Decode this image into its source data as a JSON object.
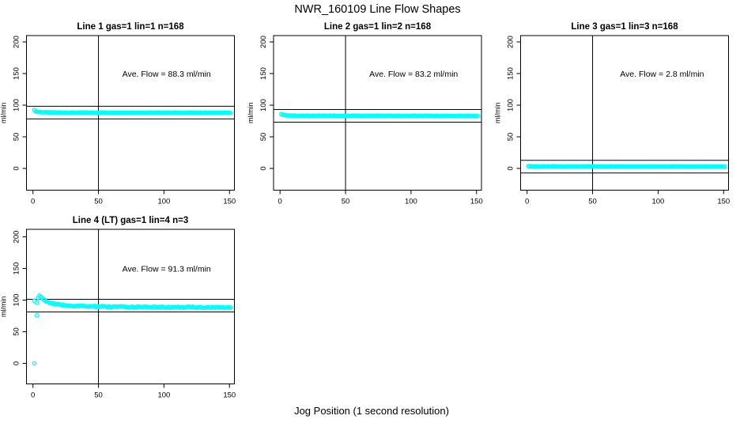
{
  "title": "NWR_160109  Line Flow Shapes",
  "xlabel": "Jog Position (1 second resolution)",
  "colors": {
    "marker": "#00ffff",
    "axis": "#000000",
    "background": "#ffffff"
  },
  "chart_data": [
    {
      "type": "scatter",
      "title": "Line 1 gas=1 lin=1 n=168",
      "annotation": "Ave. Flow =  88.3  ml/min",
      "ave_flow_ml_min": 88.3,
      "ylabel": "ml/min",
      "x_ticks": [
        0,
        50,
        100,
        150
      ],
      "y_ticks": [
        0,
        50,
        100,
        150,
        200
      ],
      "xlim": [
        -5,
        154
      ],
      "ylim": [
        -34,
        210
      ],
      "vline_x": 50,
      "hlines": [
        98.3,
        78.3
      ],
      "x_start": 1,
      "x_end": 151,
      "x_step": 1,
      "trend_keypoints": [
        [
          1,
          92
        ],
        [
          2,
          90.5
        ],
        [
          3,
          89.8
        ],
        [
          5,
          89.2
        ],
        [
          8,
          88.8
        ],
        [
          15,
          88.4
        ],
        [
          30,
          88.2
        ],
        [
          151,
          88.0
        ]
      ],
      "noise_amplitude": 0.4,
      "extra_points": [],
      "annotation_pos": [
        102,
        149
      ],
      "grid": false,
      "legend": "none"
    },
    {
      "type": "scatter",
      "title": "Line 2 gas=1 lin=2 n=168",
      "annotation": "Ave. Flow =  83.2  ml/min",
      "ave_flow_ml_min": 83.2,
      "ylabel": "ml/min",
      "x_ticks": [
        0,
        50,
        100,
        150
      ],
      "y_ticks": [
        0,
        50,
        100,
        150,
        200
      ],
      "xlim": [
        -5,
        154
      ],
      "ylim": [
        -34,
        210
      ],
      "vline_x": 50,
      "hlines": [
        93.2,
        73.2
      ],
      "x_start": 1,
      "x_end": 151,
      "x_step": 1,
      "trend_keypoints": [
        [
          1,
          86
        ],
        [
          2,
          85
        ],
        [
          4,
          84.2
        ],
        [
          8,
          83.6
        ],
        [
          15,
          83.3
        ],
        [
          151,
          83.0
        ]
      ],
      "noise_amplitude": 0.4,
      "extra_points": [],
      "annotation_pos": [
        102,
        149
      ],
      "grid": false,
      "legend": "none"
    },
    {
      "type": "scatter",
      "title": "Line 3 gas=1 lin=3 n=168",
      "annotation": "Ave. Flow =  2.8  ml/min",
      "ave_flow_ml_min": 2.8,
      "ylabel": "ml/min",
      "x_ticks": [
        0,
        50,
        100,
        150
      ],
      "y_ticks": [
        0,
        50,
        100,
        150,
        200
      ],
      "xlim": [
        -5,
        154
      ],
      "ylim": [
        -34,
        210
      ],
      "vline_x": 50,
      "hlines": [
        12.8,
        -7.2
      ],
      "x_start": 1,
      "x_end": 151,
      "x_step": 1,
      "trend_keypoints": [
        [
          1,
          3.4
        ],
        [
          5,
          3.2
        ],
        [
          151,
          3.0
        ]
      ],
      "noise_amplitude": 0.3,
      "extra_points": [],
      "annotation_pos": [
        103,
        149
      ],
      "grid": false,
      "legend": "none"
    },
    {
      "type": "scatter",
      "title": "Line 4 (LT) gas=1 lin=4 n=3",
      "annotation": "Ave. Flow =  91.3  ml/min",
      "ave_flow_ml_min": 91.3,
      "ylabel": "ml/min",
      "x_ticks": [
        0,
        50,
        100,
        150
      ],
      "y_ticks": [
        0,
        50,
        100,
        150,
        200
      ],
      "xlim": [
        -5,
        154
      ],
      "ylim": [
        -34,
        210
      ],
      "vline_x": 50,
      "hlines": [
        101.3,
        81.3
      ],
      "x_start": 3,
      "x_end": 151,
      "x_step": 1,
      "trend_keypoints": [
        [
          3,
          96
        ],
        [
          4,
          103
        ],
        [
          5,
          106.5
        ],
        [
          6,
          105.5
        ],
        [
          7,
          103.5
        ],
        [
          8,
          101.5
        ],
        [
          10,
          98.5
        ],
        [
          12,
          96.5
        ],
        [
          15,
          94.5
        ],
        [
          20,
          92.5
        ],
        [
          25,
          91.5
        ],
        [
          30,
          91
        ],
        [
          40,
          90.2
        ],
        [
          50,
          89.8
        ],
        [
          60,
          89.4
        ],
        [
          80,
          89
        ],
        [
          100,
          88.8
        ],
        [
          120,
          88.6
        ],
        [
          151,
          88.3
        ]
      ],
      "noise_amplitude": 1.0,
      "extra_points": [
        [
          1,
          99
        ],
        [
          3,
          76
        ],
        [
          1,
          0
        ]
      ],
      "annotation_pos": [
        102,
        149
      ],
      "grid": false,
      "legend": "none"
    }
  ]
}
